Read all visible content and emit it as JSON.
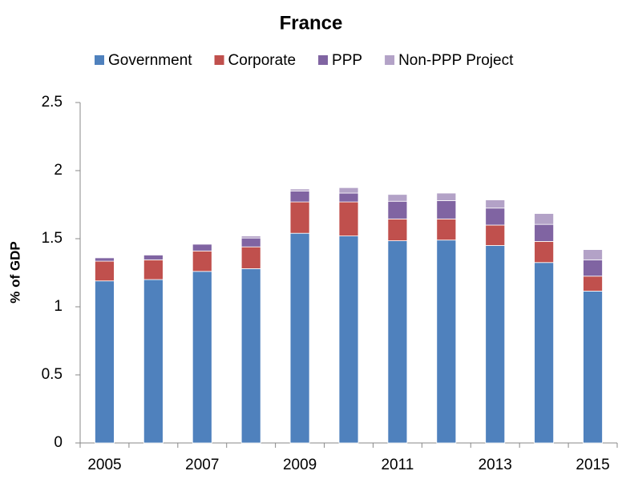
{
  "chart_data": {
    "type": "stacked_bar",
    "title": "France",
    "y_label": "% of GDP",
    "categories": [
      "2005",
      null,
      "2007",
      null,
      "2009",
      null,
      "2011",
      null,
      "2013",
      null,
      "2015"
    ],
    "series": [
      {
        "name": "Government",
        "color": "#4f81bd",
        "values": [
          1.19,
          1.2,
          1.26,
          1.28,
          1.54,
          1.52,
          1.485,
          1.49,
          1.45,
          1.325,
          1.115
        ]
      },
      {
        "name": "Corporate",
        "color": "#c0504d",
        "values": [
          0.145,
          0.145,
          0.15,
          0.16,
          0.23,
          0.25,
          0.16,
          0.155,
          0.15,
          0.155,
          0.11
        ]
      },
      {
        "name": "PPP",
        "color": "#8064a2",
        "values": [
          0.025,
          0.035,
          0.05,
          0.065,
          0.08,
          0.065,
          0.13,
          0.135,
          0.125,
          0.125,
          0.12
        ]
      },
      {
        "name": "Non-PPP Project",
        "color": "#b3a2c7",
        "values": [
          0.005,
          0,
          0.005,
          0.015,
          0.015,
          0.04,
          0.05,
          0.055,
          0.06,
          0.08,
          0.075
        ]
      }
    ],
    "ylim": [
      0,
      2.5
    ],
    "yticks": [
      0,
      0.5,
      1,
      1.5,
      2,
      2.5
    ],
    "legend": "top"
  }
}
